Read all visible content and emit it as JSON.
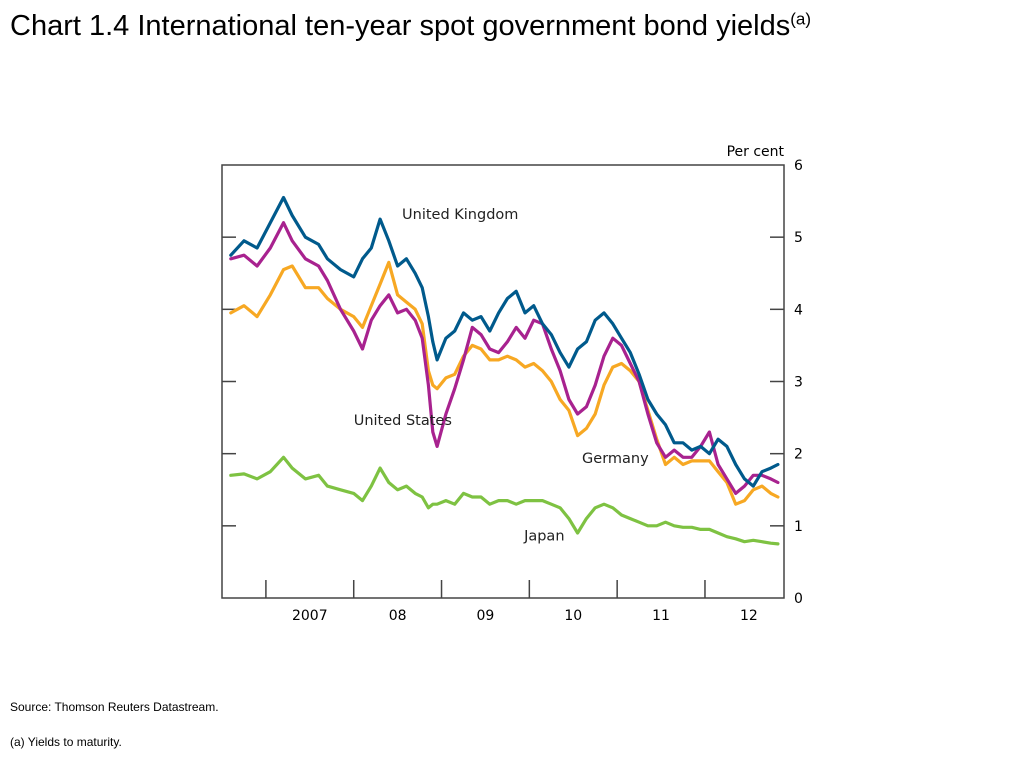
{
  "page": {
    "title": "Chart 1.4  International ten-year spot government bond yields",
    "title_superscript": "(a)",
    "source": "Source:  Thomson Reuters Datastream.",
    "footnote": "(a)  Yields to maturity."
  },
  "chart_data": {
    "type": "line",
    "ylabel": "Per cent",
    "ylim": [
      0,
      6
    ],
    "y_ticks": [
      0,
      1,
      2,
      3,
      4,
      5,
      6
    ],
    "y_axis_side": "right",
    "xlim": [
      2006.5,
      2012.9
    ],
    "x_ticks": [
      {
        "label": "2007",
        "value": 2007.5
      },
      {
        "label": "08",
        "value": 2008.5
      },
      {
        "label": "09",
        "value": 2009.5
      },
      {
        "label": "10",
        "value": 2010.5
      },
      {
        "label": "11",
        "value": 2011.5
      },
      {
        "label": "12",
        "value": 2012.5
      }
    ],
    "x_boundaries": [
      2007,
      2008,
      2009,
      2010,
      2011,
      2012
    ],
    "grid": false,
    "legend": "inline labels",
    "series": [
      {
        "name": "United Kingdom",
        "color": "#005a8c",
        "x": [
          2006.6,
          2006.75,
          2006.9,
          2007.05,
          2007.2,
          2007.3,
          2007.45,
          2007.6,
          2007.7,
          2007.85,
          2008.0,
          2008.1,
          2008.2,
          2008.3,
          2008.4,
          2008.5,
          2008.6,
          2008.7,
          2008.78,
          2008.85,
          2008.9,
          2008.95,
          2009.05,
          2009.15,
          2009.25,
          2009.35,
          2009.45,
          2009.55,
          2009.65,
          2009.75,
          2009.85,
          2009.95,
          2010.05,
          2010.15,
          2010.25,
          2010.35,
          2010.45,
          2010.55,
          2010.65,
          2010.75,
          2010.85,
          2010.95,
          2011.05,
          2011.15,
          2011.25,
          2011.35,
          2011.45,
          2011.55,
          2011.65,
          2011.75,
          2011.85,
          2011.95,
          2012.05,
          2012.15,
          2012.25,
          2012.35,
          2012.45,
          2012.55,
          2012.65,
          2012.75,
          2012.83
        ],
        "values": [
          4.75,
          4.95,
          4.85,
          5.2,
          5.55,
          5.3,
          5.0,
          4.9,
          4.7,
          4.55,
          4.45,
          4.7,
          4.85,
          5.25,
          4.95,
          4.6,
          4.7,
          4.5,
          4.3,
          3.9,
          3.55,
          3.3,
          3.6,
          3.7,
          3.95,
          3.85,
          3.9,
          3.7,
          3.95,
          4.15,
          4.25,
          3.95,
          4.05,
          3.8,
          3.65,
          3.4,
          3.2,
          3.45,
          3.55,
          3.85,
          3.95,
          3.8,
          3.6,
          3.4,
          3.1,
          2.75,
          2.55,
          2.4,
          2.15,
          2.15,
          2.05,
          2.1,
          2.0,
          2.2,
          2.1,
          1.85,
          1.65,
          1.55,
          1.75,
          1.8,
          1.85
        ]
      },
      {
        "name": "United States",
        "color": "#a8228f",
        "x": [
          2006.6,
          2006.75,
          2006.9,
          2007.05,
          2007.2,
          2007.3,
          2007.45,
          2007.6,
          2007.7,
          2007.85,
          2008.0,
          2008.1,
          2008.2,
          2008.3,
          2008.4,
          2008.5,
          2008.6,
          2008.7,
          2008.78,
          2008.85,
          2008.9,
          2008.95,
          2009.05,
          2009.15,
          2009.25,
          2009.35,
          2009.45,
          2009.55,
          2009.65,
          2009.75,
          2009.85,
          2009.95,
          2010.05,
          2010.15,
          2010.25,
          2010.35,
          2010.45,
          2010.55,
          2010.65,
          2010.75,
          2010.85,
          2010.95,
          2011.05,
          2011.15,
          2011.25,
          2011.35,
          2011.45,
          2011.55,
          2011.65,
          2011.75,
          2011.85,
          2011.95,
          2012.05,
          2012.15,
          2012.25,
          2012.35,
          2012.45,
          2012.55,
          2012.65,
          2012.75,
          2012.83
        ],
        "values": [
          4.7,
          4.75,
          4.6,
          4.85,
          5.2,
          4.95,
          4.7,
          4.6,
          4.4,
          4.0,
          3.7,
          3.45,
          3.85,
          4.05,
          4.2,
          3.95,
          4.0,
          3.85,
          3.6,
          2.95,
          2.3,
          2.1,
          2.55,
          2.9,
          3.3,
          3.75,
          3.65,
          3.45,
          3.4,
          3.55,
          3.75,
          3.6,
          3.85,
          3.8,
          3.45,
          3.15,
          2.75,
          2.55,
          2.65,
          2.95,
          3.35,
          3.6,
          3.5,
          3.25,
          3.0,
          2.55,
          2.15,
          1.95,
          2.05,
          1.95,
          1.95,
          2.1,
          2.3,
          1.85,
          1.65,
          1.45,
          1.55,
          1.7,
          1.7,
          1.65,
          1.6
        ]
      },
      {
        "name": "Germany",
        "color": "#f7a823",
        "x": [
          2006.6,
          2006.75,
          2006.9,
          2007.05,
          2007.2,
          2007.3,
          2007.45,
          2007.6,
          2007.7,
          2007.85,
          2008.0,
          2008.1,
          2008.2,
          2008.3,
          2008.4,
          2008.5,
          2008.6,
          2008.7,
          2008.78,
          2008.85,
          2008.9,
          2008.95,
          2009.05,
          2009.15,
          2009.25,
          2009.35,
          2009.45,
          2009.55,
          2009.65,
          2009.75,
          2009.85,
          2009.95,
          2010.05,
          2010.15,
          2010.25,
          2010.35,
          2010.45,
          2010.55,
          2010.65,
          2010.75,
          2010.85,
          2010.95,
          2011.05,
          2011.15,
          2011.25,
          2011.35,
          2011.45,
          2011.55,
          2011.65,
          2011.75,
          2011.85,
          2011.95,
          2012.05,
          2012.15,
          2012.25,
          2012.35,
          2012.45,
          2012.55,
          2012.65,
          2012.75,
          2012.83
        ],
        "values": [
          3.95,
          4.05,
          3.9,
          4.2,
          4.55,
          4.6,
          4.3,
          4.3,
          4.15,
          4.0,
          3.9,
          3.75,
          4.05,
          4.35,
          4.65,
          4.2,
          4.1,
          4.0,
          3.8,
          3.15,
          2.95,
          2.9,
          3.05,
          3.1,
          3.35,
          3.5,
          3.45,
          3.3,
          3.3,
          3.35,
          3.3,
          3.2,
          3.25,
          3.15,
          3.0,
          2.75,
          2.6,
          2.25,
          2.35,
          2.55,
          2.95,
          3.2,
          3.25,
          3.15,
          3.0,
          2.6,
          2.2,
          1.85,
          1.95,
          1.85,
          1.9,
          1.9,
          1.9,
          1.75,
          1.6,
          1.3,
          1.35,
          1.5,
          1.55,
          1.45,
          1.4
        ]
      },
      {
        "name": "Japan",
        "color": "#7ec242",
        "x": [
          2006.6,
          2006.75,
          2006.9,
          2007.05,
          2007.2,
          2007.3,
          2007.45,
          2007.6,
          2007.7,
          2007.85,
          2008.0,
          2008.1,
          2008.2,
          2008.3,
          2008.4,
          2008.5,
          2008.6,
          2008.7,
          2008.78,
          2008.85,
          2008.9,
          2008.95,
          2009.05,
          2009.15,
          2009.25,
          2009.35,
          2009.45,
          2009.55,
          2009.65,
          2009.75,
          2009.85,
          2009.95,
          2010.05,
          2010.15,
          2010.25,
          2010.35,
          2010.45,
          2010.55,
          2010.65,
          2010.75,
          2010.85,
          2010.95,
          2011.05,
          2011.15,
          2011.25,
          2011.35,
          2011.45,
          2011.55,
          2011.65,
          2011.75,
          2011.85,
          2011.95,
          2012.05,
          2012.15,
          2012.25,
          2012.35,
          2012.45,
          2012.55,
          2012.65,
          2012.75,
          2012.83
        ],
        "values": [
          1.7,
          1.72,
          1.65,
          1.75,
          1.95,
          1.8,
          1.65,
          1.7,
          1.55,
          1.5,
          1.45,
          1.35,
          1.55,
          1.8,
          1.6,
          1.5,
          1.55,
          1.45,
          1.4,
          1.25,
          1.3,
          1.3,
          1.35,
          1.3,
          1.45,
          1.4,
          1.4,
          1.3,
          1.35,
          1.35,
          1.3,
          1.35,
          1.35,
          1.35,
          1.3,
          1.25,
          1.1,
          0.9,
          1.1,
          1.25,
          1.3,
          1.25,
          1.15,
          1.1,
          1.05,
          1.0,
          1.0,
          1.05,
          1.0,
          0.98,
          0.98,
          0.95,
          0.95,
          0.9,
          0.85,
          0.82,
          0.78,
          0.8,
          0.78,
          0.76,
          0.75
        ]
      }
    ],
    "labels": [
      {
        "series": "United Kingdom",
        "text": "United Kingdom",
        "x": 2008.55,
        "y": 5.25
      },
      {
        "series": "United States",
        "text": "United States",
        "x": 2008.0,
        "y": 2.4
      },
      {
        "series": "Germany",
        "text": "Germany",
        "x": 2010.6,
        "y": 1.87
      },
      {
        "series": "Japan",
        "text": "Japan",
        "x": 2009.94,
        "y": 0.8
      }
    ]
  }
}
